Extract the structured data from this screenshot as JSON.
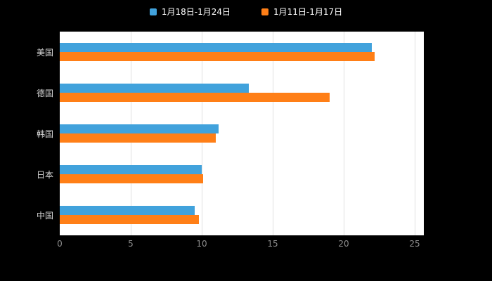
{
  "chart_data": {
    "type": "bar",
    "orientation": "horizontal",
    "title": "",
    "xlabel": "",
    "ylabel": "",
    "categories": [
      "美国",
      "德国",
      "韩国",
      "日本",
      "中国"
    ],
    "series": [
      {
        "name": "1月18日-1月24日",
        "color": "#41a2dc",
        "values": [
          22.0,
          13.3,
          11.2,
          10.0,
          9.5
        ]
      },
      {
        "name": "1月11日-1月17日",
        "color": "#ff7f17",
        "values": [
          22.2,
          19.0,
          11.0,
          10.1,
          9.8
        ]
      }
    ],
    "xlim": [
      0,
      25
    ],
    "xticks": [
      0,
      5,
      10,
      15,
      20,
      25
    ],
    "grid": true,
    "legend_position": "top"
  },
  "colors": {
    "background": "#000000",
    "plot_background": "#ffffff",
    "gridline": "#e0e0e0",
    "tick_label": "#8c8c8c",
    "category_label": "#d9d9d9",
    "legend_text": "#ffffff"
  }
}
